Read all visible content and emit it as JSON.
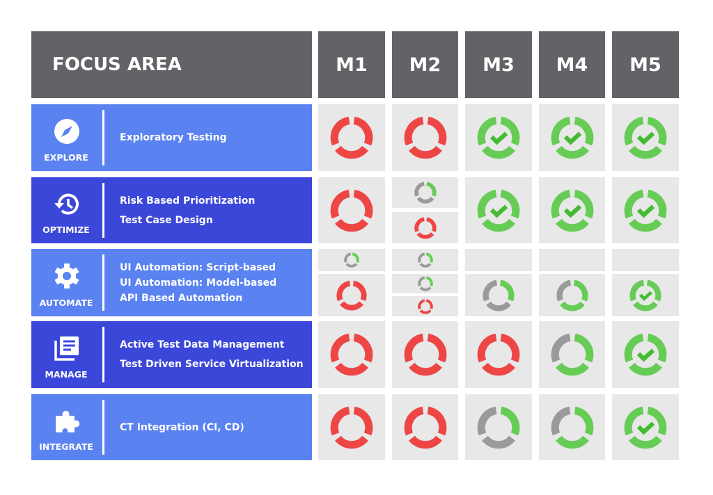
{
  "header": {
    "focus_area": "FOCUS AREA",
    "milestones": [
      "M1",
      "M2",
      "M3",
      "M4",
      "M5"
    ]
  },
  "colors": {
    "header": "#636367",
    "light_blue": "#5a82f0",
    "dark_blue": "#3b47d8",
    "cell": "#e8e8e8",
    "red": "#ee4545",
    "green": "#66cc55",
    "gray": "#9a9a9a",
    "check": "#44bb33"
  },
  "status_legend_keys": [
    "red",
    "1of3",
    "2of3",
    "done",
    "empty"
  ],
  "areas": [
    {
      "tag": "EXPLORE",
      "icon": "compass-icon",
      "items": [
        "Exploratory Testing"
      ],
      "cells": [
        [
          "red"
        ],
        [
          "red"
        ],
        [
          "done"
        ],
        [
          "done"
        ],
        [
          "done"
        ]
      ]
    },
    {
      "tag": "OPTIMIZE",
      "icon": "history-icon",
      "items": [
        "Risk Based Prioritization",
        "Test Case Design"
      ],
      "cells": [
        [
          "red"
        ],
        [
          "1of3",
          "red"
        ],
        [
          "done"
        ],
        [
          "done"
        ],
        [
          "done"
        ]
      ]
    },
    {
      "tag": "AUTOMATE",
      "icon": "gear-icon",
      "items": [
        "UI Automation: Script-based",
        "UI Automation: Model-based",
        "API Based Automation"
      ],
      "cells": [
        [
          "1of3",
          "red"
        ],
        [
          "1of3",
          "1of3",
          "red"
        ],
        [
          "empty",
          "1of3"
        ],
        [
          "empty",
          "2of3"
        ],
        [
          "empty",
          "done"
        ]
      ]
    },
    {
      "tag": "MANAGE",
      "icon": "library-icon",
      "items": [
        "Active Test Data Management",
        "Test Driven Service Virtualization"
      ],
      "cells": [
        [
          "red"
        ],
        [
          "red"
        ],
        [
          "red"
        ],
        [
          "2of3"
        ],
        [
          "done"
        ]
      ]
    },
    {
      "tag": "INTEGRATE",
      "icon": "puzzle-icon",
      "items": [
        "CT Integration (CI, CD)"
      ],
      "cells": [
        [
          "red"
        ],
        [
          "red"
        ],
        [
          "1of3"
        ],
        [
          "2of3"
        ],
        [
          "done"
        ]
      ]
    }
  ]
}
